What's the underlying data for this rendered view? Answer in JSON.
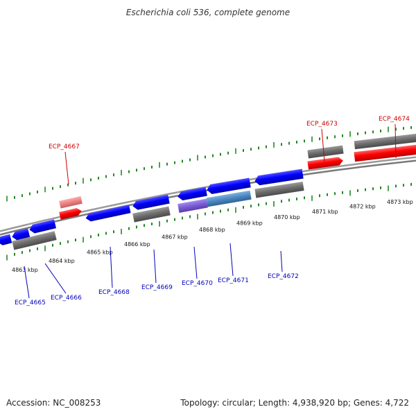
{
  "title": "Escherichia coli 536, complete genome",
  "footer": {
    "accession": "Accession: NC_008253",
    "topology": "Topology: circular; Length: 4,938,920 bp; Genes: 4,722"
  },
  "colors": {
    "forward_gene": "#ff0000",
    "forward_gene_light": "#f08080",
    "reverse_gene": "#0000ff",
    "reverse_gene_purple": "#7b5bd6",
    "reverse_gene_steel": "#4a86c0",
    "cds_feature": "#6b6b6b",
    "backbone": "#8a8a8a",
    "tick": "#228822",
    "label_forward": "#cc0000",
    "label_reverse": "#0000bb"
  },
  "ticks": [
    {
      "label": "4863 kbp"
    },
    {
      "label": "4864 kbp"
    },
    {
      "label": "4865 kbp"
    },
    {
      "label": "4866 kbp"
    },
    {
      "label": "4867 kbp"
    },
    {
      "label": "4868 kbp"
    },
    {
      "label": "4869 kbp"
    },
    {
      "label": "4870 kbp"
    },
    {
      "label": "4871 kbp"
    },
    {
      "label": "4872 kbp"
    },
    {
      "label": "4873 kbp"
    }
  ],
  "forward_genes": [
    {
      "label": "ECP_4667"
    },
    {
      "label": "ECP_4673"
    },
    {
      "label": "ECP_4674"
    }
  ],
  "reverse_genes": [
    {
      "label": "ECP_4665"
    },
    {
      "label": "ECP_4666"
    },
    {
      "label": "ECP_4668"
    },
    {
      "label": "ECP_4669"
    },
    {
      "label": "ECP_4670"
    },
    {
      "label": "ECP_4671"
    },
    {
      "label": "ECP_4672"
    }
  ]
}
